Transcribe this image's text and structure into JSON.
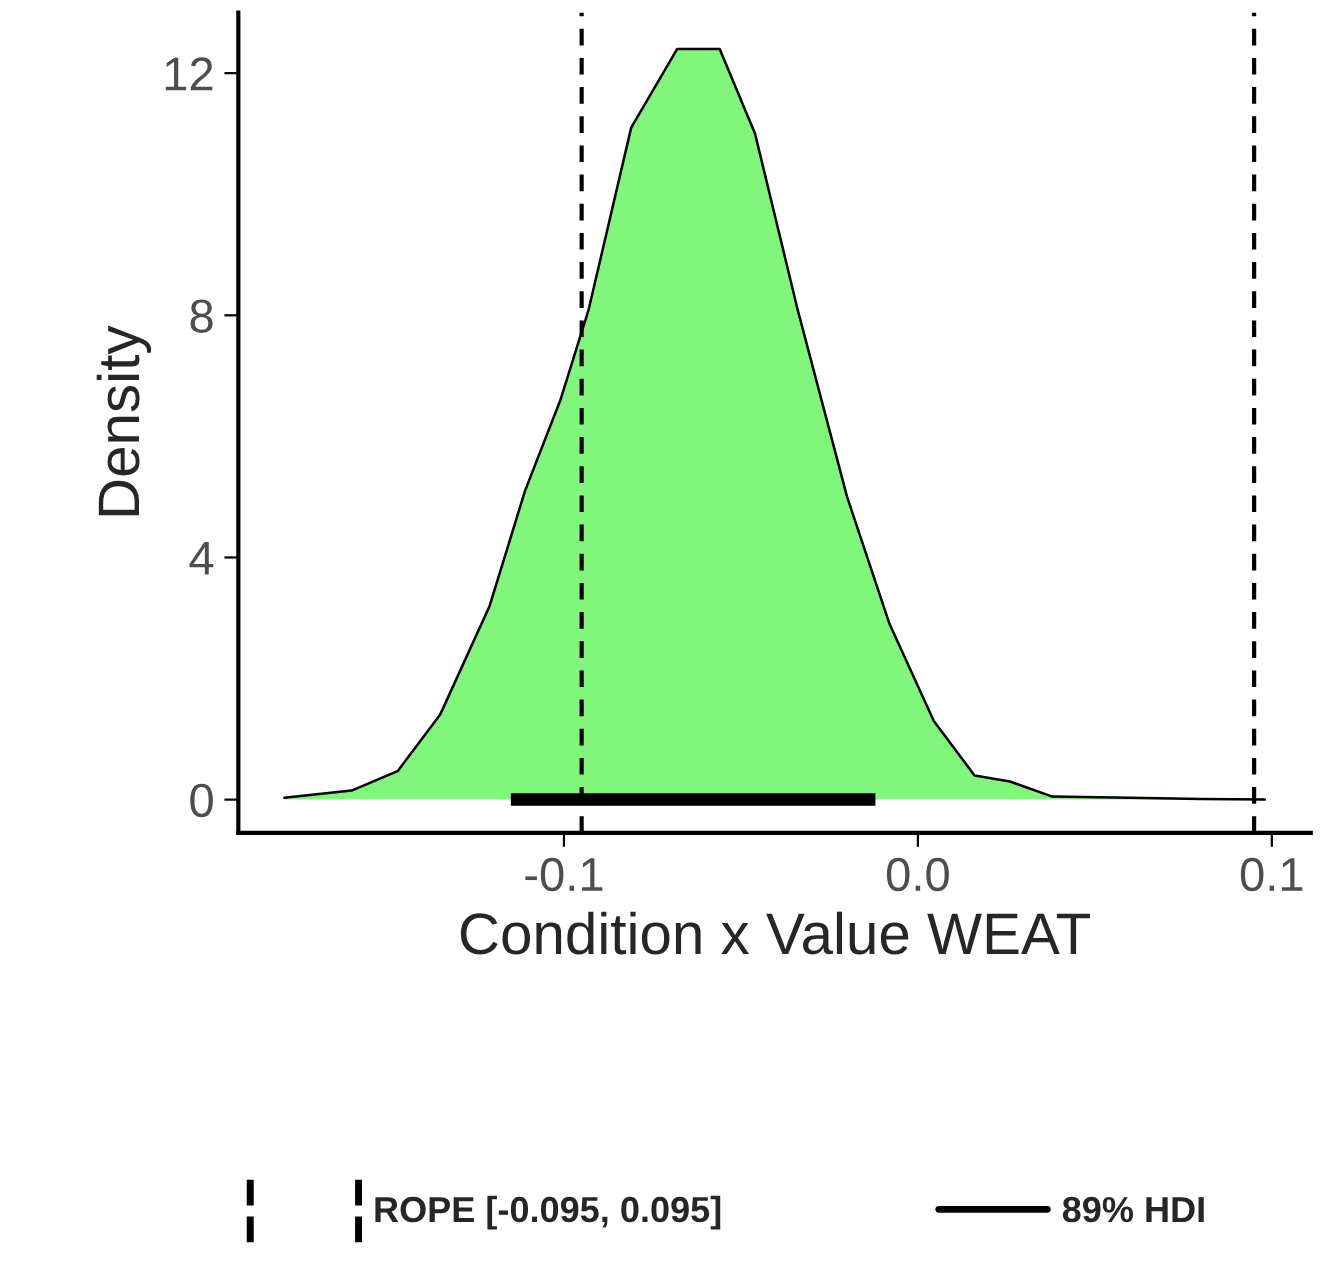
{
  "chart_data": {
    "type": "area",
    "xlabel": "Condition x Value WEAT",
    "ylabel": "Density",
    "series": [
      {
        "color": "#80f77a",
        "x": [
          -0.179,
          -0.16,
          -0.147,
          -0.135,
          -0.121,
          -0.111,
          -0.101,
          -0.093,
          -0.081,
          -0.068,
          -0.056,
          -0.046,
          -0.034,
          -0.02,
          -0.008,
          0.0045,
          0.016,
          0.026,
          0.038,
          0.06,
          0.08,
          0.098
        ],
        "values": [
          0.03,
          0.15,
          0.47,
          1.4,
          3.2,
          5.1,
          6.6,
          8.1,
          11.1,
          12.4,
          12.4,
          11.0,
          8.1,
          5.0,
          2.9,
          1.3,
          0.4,
          0.3,
          0.05,
          0.03,
          0.01,
          0.0
        ]
      },
      {
        "type": "line",
        "name": "89% HDI",
        "color": "#000000",
        "x": [
          -0.115,
          -0.012
        ],
        "values": [
          0,
          0
        ]
      }
    ],
    "ref_lines": [
      {
        "axis": "x",
        "value": -0.095,
        "label": "ROPE [-0.095, 0.095]",
        "line_style": "dashed",
        "color": "#000000"
      },
      {
        "axis": "x",
        "value": 0.095,
        "line_style": "dashed",
        "color": "#000000"
      }
    ],
    "xlim": [
      -0.192,
      0.111
    ],
    "ylim": [
      -0.55,
      13.0
    ],
    "xticks": [
      {
        "value": -0.1,
        "label": "-0.1"
      },
      {
        "value": 0.0,
        "label": "0.0"
      },
      {
        "value": 0.1,
        "label": "0.1"
      }
    ],
    "yticks": [
      0,
      4,
      8,
      12
    ],
    "grid": false,
    "legend": "bottom"
  }
}
